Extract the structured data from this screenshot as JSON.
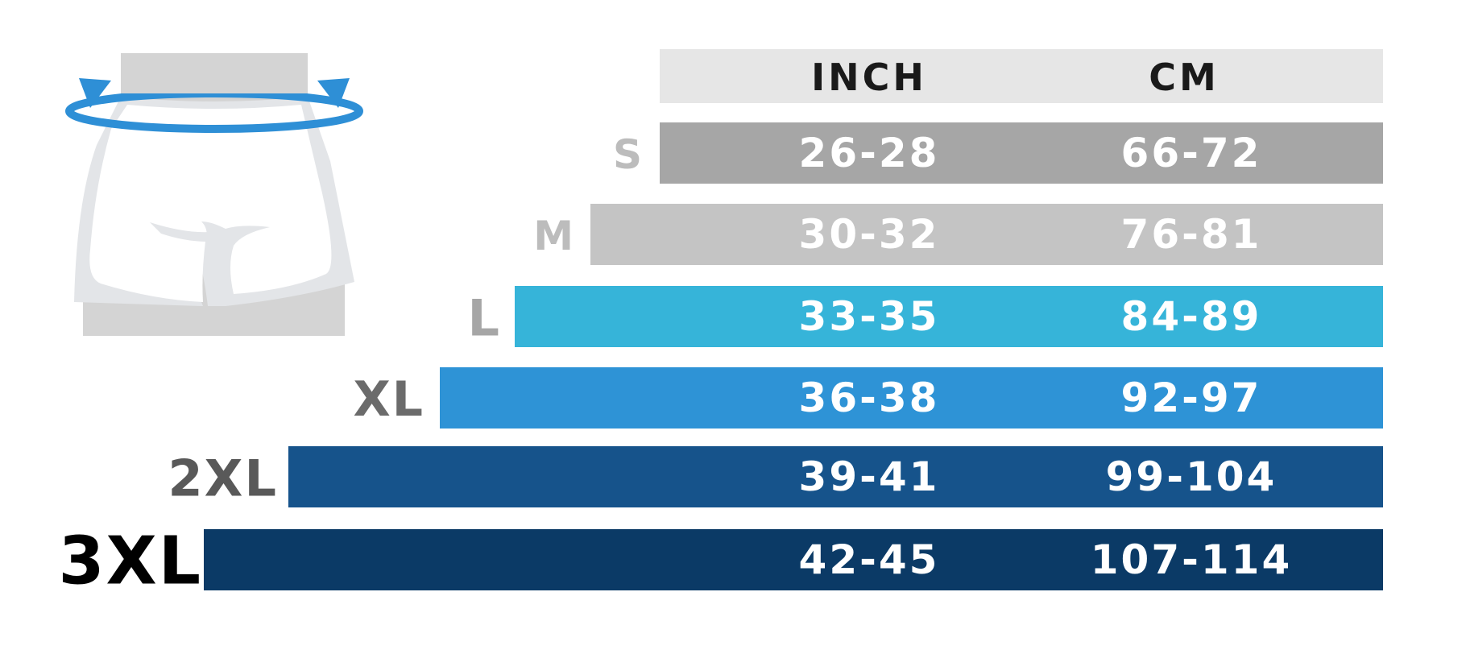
{
  "table": {
    "header": [
      "INCH",
      "CM"
    ],
    "rows": [
      [
        "S",
        "26-28",
        "66-72"
      ],
      [
        "M",
        "30-32",
        "76-81"
      ],
      [
        "L",
        "33-35",
        "84-89"
      ],
      [
        "XL",
        "36-38",
        "92-97"
      ],
      [
        "2XL",
        "39-41",
        "99-104"
      ],
      [
        "3XL",
        "42-45",
        "107-114"
      ]
    ]
  }
}
